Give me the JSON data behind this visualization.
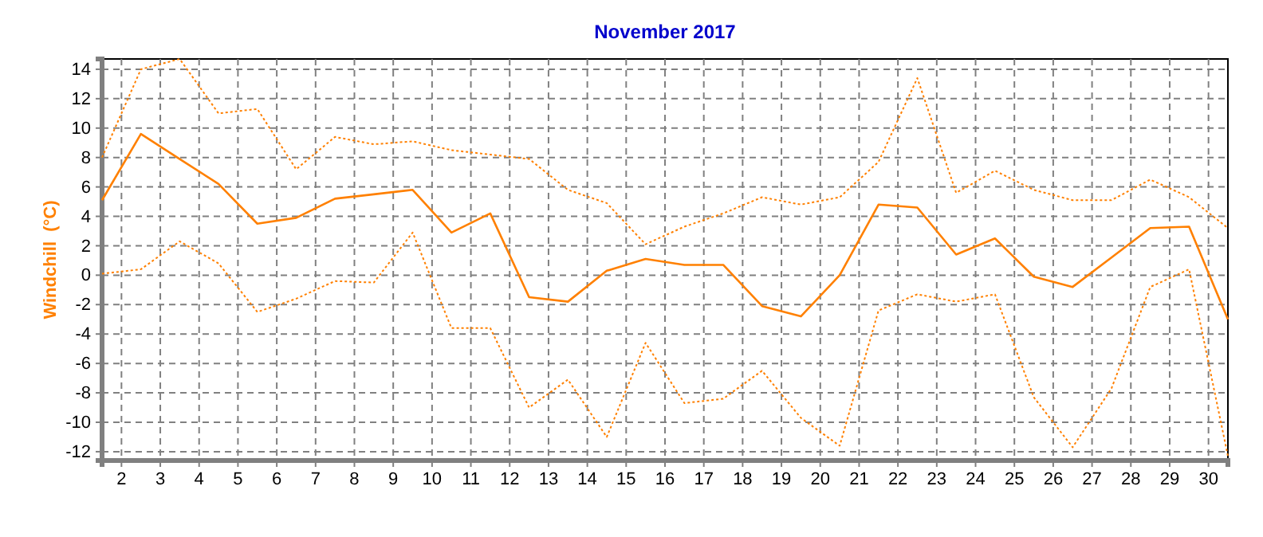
{
  "chart_data": {
    "type": "line",
    "title": "November 2017",
    "ylabel": "Windchill  (°C)",
    "x": [
      1.5,
      2.5,
      3.5,
      4.5,
      5.5,
      6.5,
      7.5,
      8.5,
      9.5,
      10.5,
      11.5,
      12.5,
      13.5,
      14.5,
      15.5,
      16.5,
      17.5,
      18.5,
      19.5,
      20.5,
      21.5,
      22.5,
      23.5,
      24.5,
      25.5,
      26.5,
      27.5,
      28.5,
      29.5,
      30.5
    ],
    "series": [
      {
        "color": "#ff8000",
        "line_style": "dotted",
        "values": [
          8.0,
          14.0,
          14.7,
          11.0,
          11.3,
          7.2,
          9.4,
          8.9,
          9.1,
          8.5,
          8.2,
          7.9,
          5.8,
          4.9,
          2.1,
          3.3,
          4.2,
          5.3,
          4.8,
          5.3,
          7.7,
          13.4,
          5.6,
          7.1,
          5.8,
          5.1,
          5.1,
          6.5,
          5.3,
          3.2
        ]
      },
      {
        "color": "#ff8000",
        "line_style": "solid",
        "values": [
          5.1,
          9.6,
          7.9,
          6.2,
          3.5,
          3.9,
          5.2,
          5.5,
          5.8,
          2.9,
          4.2,
          -1.5,
          -1.8,
          0.3,
          1.1,
          0.7,
          0.7,
          -2.1,
          -2.8,
          0.0,
          4.8,
          4.6,
          1.4,
          2.5,
          -0.1,
          -0.8,
          1.2,
          3.2,
          3.3,
          -3.0
        ]
      },
      {
        "color": "#ff8000",
        "line_style": "dotted",
        "values": [
          0.1,
          0.4,
          2.3,
          0.8,
          -2.5,
          -1.6,
          -0.4,
          -0.5,
          2.9,
          -3.6,
          -3.6,
          -9.0,
          -7.1,
          -11.0,
          -4.6,
          -8.7,
          -8.4,
          -6.5,
          -9.7,
          -11.6,
          -2.4,
          -1.3,
          -1.8,
          -1.3,
          -8.3,
          -11.7,
          -7.7,
          -0.8,
          0.4,
          -12.3
        ]
      }
    ],
    "xlim": [
      1.5,
      30.5
    ],
    "xticks": [
      2,
      3,
      4,
      5,
      6,
      7,
      8,
      9,
      10,
      11,
      12,
      13,
      14,
      15,
      16,
      17,
      18,
      19,
      20,
      21,
      22,
      23,
      24,
      25,
      26,
      27,
      28,
      29,
      30
    ],
    "ylim": [
      -12.6,
      14.7
    ],
    "yticks": [
      -12,
      -10,
      -8,
      -6,
      -4,
      -2,
      0,
      2,
      4,
      6,
      8,
      10,
      12,
      14
    ],
    "grid": true
  }
}
